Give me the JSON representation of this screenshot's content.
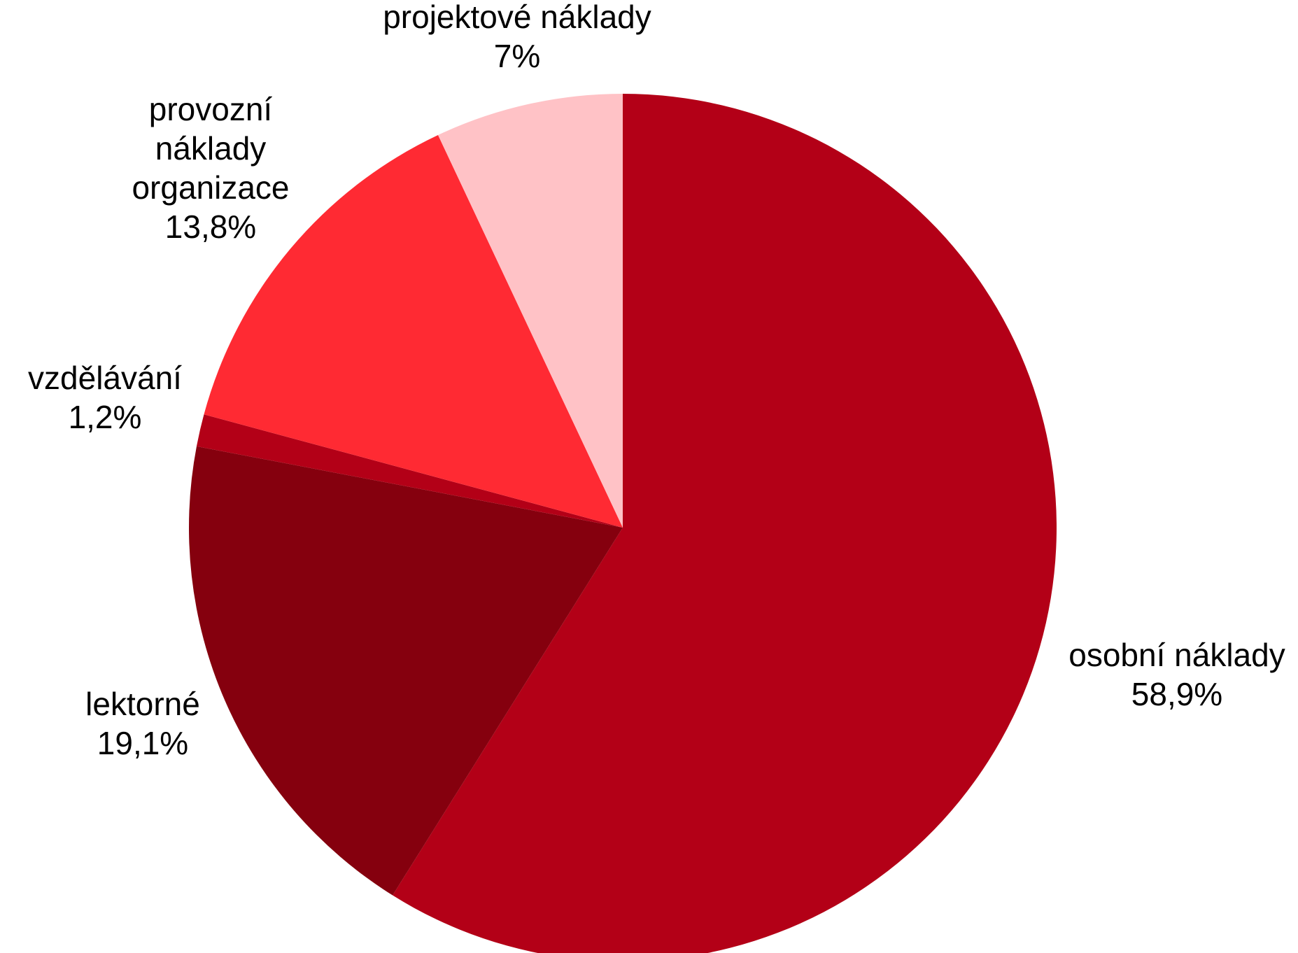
{
  "chart_data": {
    "type": "pie",
    "start_angle_deg": 0,
    "direction": "clockwise",
    "legend": "none",
    "slices": [
      {
        "label": "osobní náklady",
        "value": 58.9,
        "value_label": "58,9%",
        "color": "#B30017",
        "label_lines": [
          "osobní náklady"
        ]
      },
      {
        "label": "lektorné",
        "value": 19.1,
        "value_label": "19,1%",
        "color": "#85000E",
        "label_lines": [
          "lektorné"
        ]
      },
      {
        "label": "vzdělávání",
        "value": 1.2,
        "value_label": "1,2%",
        "color": "#B30017",
        "label_lines": [
          "vzdělávání"
        ]
      },
      {
        "label": "provozní náklady organizace",
        "value": 13.8,
        "value_label": "13,8%",
        "color": "#FF2A33",
        "label_lines": [
          "provozní",
          "náklady",
          "organizace"
        ]
      },
      {
        "label": "projektové náklady",
        "value": 7,
        "value_label": "7%",
        "color": "#FFC2C6",
        "label_lines": [
          "projektové náklady"
        ]
      }
    ]
  }
}
